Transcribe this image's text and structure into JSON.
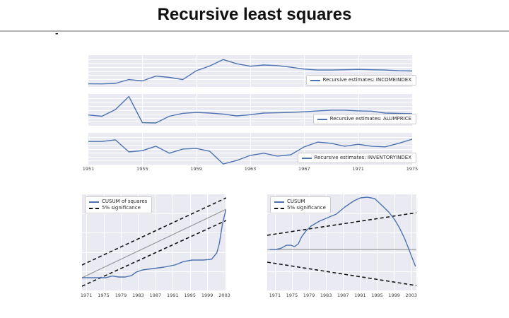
{
  "page": {
    "title": "Recursive least squares",
    "stray_dash": "-"
  },
  "chart_data": {
    "colors": {
      "blue": "#4c72b0",
      "gray": "#9a9a9a",
      "black": "#141414",
      "panel_bg": "#eaeaf2",
      "grid": "#ffffff"
    },
    "note": "y axes are unlabeled in the source image; y values are relative plot fractions (0=bottom, 1=top)",
    "tick_groups": {
      "top": {
        "x_range": [
          1951,
          1975
        ],
        "years": [
          1951,
          1955,
          1959,
          1963,
          1967,
          1971,
          1975
        ]
      },
      "bl": {
        "x_range": [
          1970,
          2003.4
        ],
        "years": [
          1971,
          1975,
          1979,
          1983,
          1987,
          1991,
          1995,
          1999,
          2003
        ]
      },
      "br": {
        "x_range": [
          1969.2,
          2004.2
        ],
        "years": [
          1971,
          1975,
          1979,
          1983,
          1987,
          1991,
          1995,
          1999,
          2003
        ]
      }
    },
    "charts": {
      "income": {
        "type": "line",
        "legend_label": "Recursive estimates: INCOMEINDEX",
        "x_range": [
          1951,
          1975
        ],
        "x_ticks": [
          1955,
          1959,
          1963,
          1967,
          1971
        ],
        "h_grid": [
          0.125,
          0.25,
          0.375,
          0.5,
          0.625,
          0.75,
          0.875
        ],
        "series": [
          {
            "name": "Recursive estimates: INCOMEINDEX",
            "color": "blue",
            "width": 1.4,
            "points": [
              [
                1951,
                0.1
              ],
              [
                1952,
                0.095
              ],
              [
                1953,
                0.11
              ],
              [
                1954,
                0.23
              ],
              [
                1955,
                0.19
              ],
              [
                1956,
                0.34
              ],
              [
                1957,
                0.3
              ],
              [
                1958,
                0.23
              ],
              [
                1959,
                0.51
              ],
              [
                1960,
                0.66
              ],
              [
                1961,
                0.86
              ],
              [
                1962,
                0.73
              ],
              [
                1963,
                0.65
              ],
              [
                1964,
                0.69
              ],
              [
                1965,
                0.67
              ],
              [
                1966,
                0.62
              ],
              [
                1967,
                0.56
              ],
              [
                1968,
                0.53
              ],
              [
                1969,
                0.53
              ],
              [
                1970,
                0.54
              ],
              [
                1971,
                0.55
              ],
              [
                1972,
                0.54
              ],
              [
                1973,
                0.53
              ],
              [
                1974,
                0.51
              ],
              [
                1975,
                0.5
              ]
            ]
          }
        ]
      },
      "alum": {
        "type": "line",
        "legend_label": "Recursive estimates: ALUMPRICE",
        "x_range": [
          1951,
          1975
        ],
        "x_ticks": [
          1955,
          1959,
          1963,
          1967,
          1971
        ],
        "h_grid": [
          0.125,
          0.25,
          0.375,
          0.5,
          0.625,
          0.75,
          0.875
        ],
        "series": [
          {
            "name": "Recursive estimates: ALUMPRICE",
            "color": "blue",
            "width": 1.4,
            "points": [
              [
                1951,
                0.34
              ],
              [
                1952,
                0.3
              ],
              [
                1953,
                0.51
              ],
              [
                1954,
                0.92
              ],
              [
                1955,
                0.1
              ],
              [
                1956,
                0.09
              ],
              [
                1957,
                0.3
              ],
              [
                1958,
                0.39
              ],
              [
                1959,
                0.42
              ],
              [
                1960,
                0.4
              ],
              [
                1961,
                0.37
              ],
              [
                1962,
                0.31
              ],
              [
                1963,
                0.35
              ],
              [
                1964,
                0.4
              ],
              [
                1965,
                0.41
              ],
              [
                1966,
                0.42
              ],
              [
                1967,
                0.44
              ],
              [
                1968,
                0.47
              ],
              [
                1969,
                0.49
              ],
              [
                1970,
                0.49
              ],
              [
                1971,
                0.47
              ],
              [
                1972,
                0.46
              ],
              [
                1973,
                0.4
              ],
              [
                1974,
                0.39
              ],
              [
                1975,
                0.38
              ]
            ]
          }
        ]
      },
      "inventory": {
        "type": "line",
        "legend_label": "Recursive estimates: INVENTORYINDEX",
        "x_range": [
          1951,
          1975
        ],
        "x_ticks": [
          1955,
          1959,
          1963,
          1967,
          1971
        ],
        "h_grid": [
          0.125,
          0.25,
          0.375,
          0.5,
          0.625,
          0.75,
          0.875
        ],
        "series": [
          {
            "name": "Recursive estimates: INVENTORYINDEX",
            "color": "blue",
            "width": 1.4,
            "points": [
              [
                1951,
                0.73
              ],
              [
                1952,
                0.73
              ],
              [
                1953,
                0.78
              ],
              [
                1954,
                0.4
              ],
              [
                1955,
                0.44
              ],
              [
                1956,
                0.58
              ],
              [
                1957,
                0.36
              ],
              [
                1958,
                0.49
              ],
              [
                1959,
                0.51
              ],
              [
                1960,
                0.42
              ],
              [
                1961,
                0.02
              ],
              [
                1962,
                0.13
              ],
              [
                1963,
                0.29
              ],
              [
                1964,
                0.36
              ],
              [
                1965,
                0.27
              ],
              [
                1966,
                0.31
              ],
              [
                1967,
                0.56
              ],
              [
                1968,
                0.71
              ],
              [
                1969,
                0.67
              ],
              [
                1970,
                0.58
              ],
              [
                1971,
                0.64
              ],
              [
                1972,
                0.58
              ],
              [
                1973,
                0.56
              ],
              [
                1974,
                0.67
              ],
              [
                1975,
                0.8
              ]
            ]
          }
        ]
      },
      "cusum_sq": {
        "type": "line",
        "legend": [
          {
            "label": "CUSUM of squares",
            "style": "solid-blue"
          },
          {
            "label": "5% significance",
            "style": "dashed-black"
          }
        ],
        "x_range": [
          1970,
          2003.4
        ],
        "x_ticks": [
          1971,
          1975,
          1979,
          1983,
          1987,
          1991,
          1995,
          1999,
          2003
        ],
        "h_grid": [
          0.2,
          0.4,
          0.6,
          0.8
        ],
        "series": [
          {
            "name": "expected (reference) line",
            "color": "gray",
            "width": 1.2,
            "points": [
              [
                1970,
                0.132
              ],
              [
                2003.4,
                0.845
              ]
            ]
          },
          {
            "name": "5% significance upper bound",
            "color": "black",
            "width": 1.6,
            "dash": true,
            "points": [
              [
                1970,
                0.265
              ],
              [
                2003.4,
                0.963
              ]
            ]
          },
          {
            "name": "5% significance lower bound",
            "color": "black",
            "width": 1.6,
            "dash": true,
            "points": [
              [
                1970,
                0.044
              ],
              [
                2003.4,
                0.728
              ]
            ]
          },
          {
            "name": "CUSUM of squares",
            "color": "blue",
            "width": 1.4,
            "points": [
              [
                1970,
                0.132
              ],
              [
                1975.5,
                0.132
              ],
              [
                1977,
                0.15
              ],
              [
                1978.5,
                0.14
              ],
              [
                1980,
                0.14
              ],
              [
                1981.5,
                0.155
              ],
              [
                1982.5,
                0.19
              ],
              [
                1984,
                0.213
              ],
              [
                1986.5,
                0.228
              ],
              [
                1989,
                0.243
              ],
              [
                1991.5,
                0.265
              ],
              [
                1993.5,
                0.3
              ],
              [
                1995.5,
                0.316
              ],
              [
                1998,
                0.316
              ],
              [
                2000,
                0.324
              ],
              [
                2001.2,
                0.39
              ],
              [
                2001.8,
                0.485
              ],
              [
                2002.5,
                0.684
              ],
              [
                2003.3,
                0.838
              ]
            ]
          }
        ]
      },
      "cusum": {
        "type": "line",
        "legend": [
          {
            "label": "CUSUM",
            "style": "solid-blue"
          },
          {
            "label": "5% significance",
            "style": "dashed-black"
          }
        ],
        "x_range": [
          1969.2,
          2004.2
        ],
        "x_ticks": [
          1971,
          1975,
          1979,
          1983,
          1987,
          1991,
          1995,
          1999,
          2003
        ],
        "h_grid": [
          0.2,
          0.4,
          0.6,
          0.8
        ],
        "series": [
          {
            "name": "zero line",
            "color": "gray",
            "width": 1.2,
            "points": [
              [
                1969.2,
                0.426
              ],
              [
                2004.2,
                0.426
              ]
            ]
          },
          {
            "name": "5% significance upper bound",
            "color": "black",
            "width": 1.6,
            "dash": true,
            "points": [
              [
                1969.2,
                0.574
              ],
              [
                2004.2,
                0.809
              ]
            ]
          },
          {
            "name": "5% significance lower bound",
            "color": "black",
            "width": 1.6,
            "dash": true,
            "points": [
              [
                1969.2,
                0.294
              ],
              [
                2004.2,
                0.051
              ]
            ]
          },
          {
            "name": "CUSUM",
            "color": "blue",
            "width": 1.4,
            "points": [
              [
                1969.8,
                0.426
              ],
              [
                1971.2,
                0.426
              ],
              [
                1972.5,
                0.44
              ],
              [
                1973.7,
                0.47
              ],
              [
                1974.8,
                0.47
              ],
              [
                1975.6,
                0.456
              ],
              [
                1976.5,
                0.485
              ],
              [
                1977.3,
                0.56
              ],
              [
                1978.3,
                0.62
              ],
              [
                1979.5,
                0.67
              ],
              [
                1981.4,
                0.72
              ],
              [
                1983.4,
                0.757
              ],
              [
                1985.4,
                0.794
              ],
              [
                1987.4,
                0.868
              ],
              [
                1989.6,
                0.934
              ],
              [
                1991.1,
                0.963
              ],
              [
                1992.7,
                0.97
              ],
              [
                1994.4,
                0.956
              ],
              [
                1996,
                0.89
              ],
              [
                1997.7,
                0.816
              ],
              [
                1999,
                0.743
              ],
              [
                2000.2,
                0.654
              ],
              [
                2001.4,
                0.544
              ],
              [
                2002.4,
                0.434
              ],
              [
                2003.2,
                0.338
              ],
              [
                2004,
                0.25
              ]
            ]
          }
        ]
      }
    }
  }
}
